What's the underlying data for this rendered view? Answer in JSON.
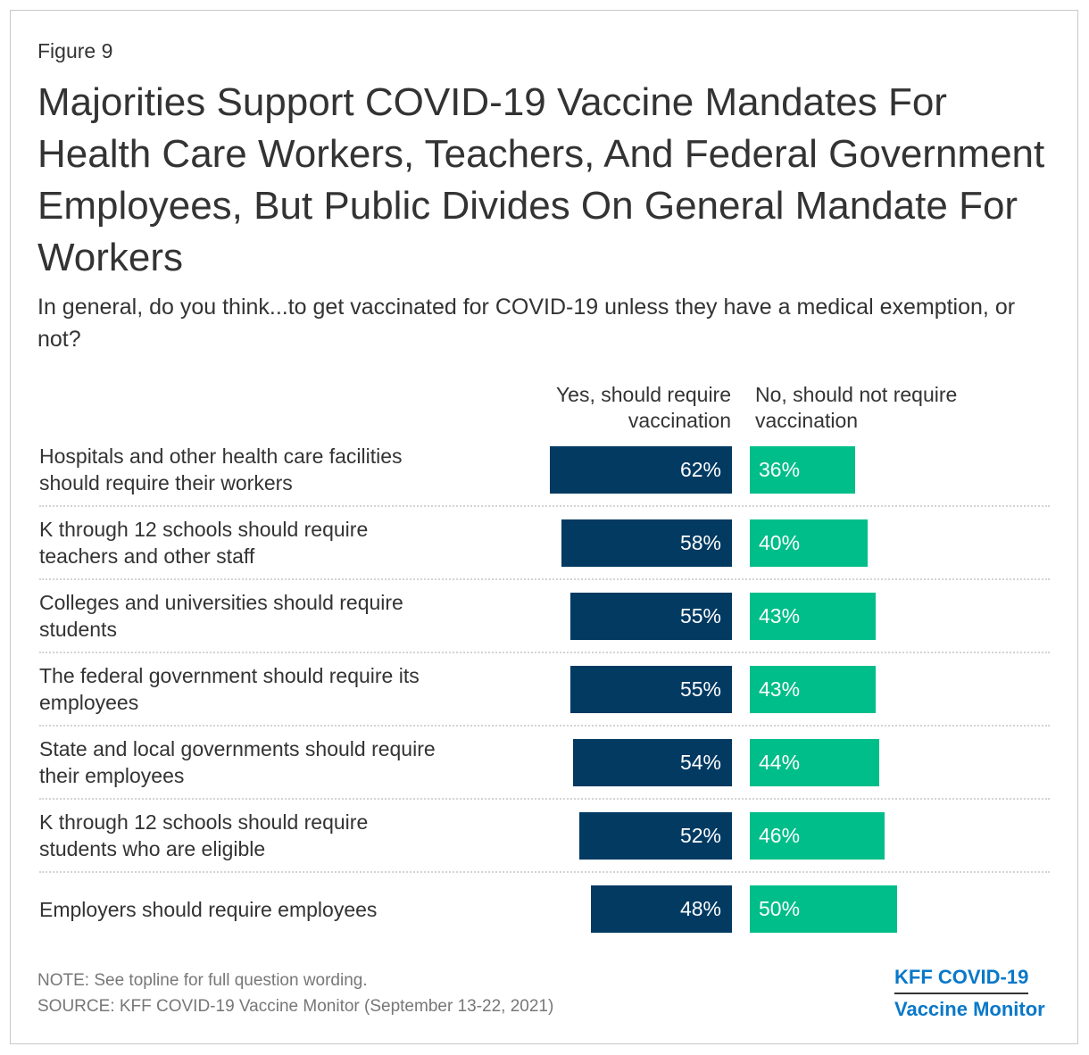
{
  "figure_label": "Figure 9",
  "title": "Majorities Support COVID-19 Vaccine Mandates For Health Care Workers, Teachers, And Federal Government Employees, But Public Divides On General Mandate For Workers",
  "subtitle": "In general, do you think...to get vaccinated for COVID-19 unless they have a medical exemption, or not?",
  "note": "NOTE: See topline for full question wording.",
  "source": "SOURCE: KFF COVID-19 Vaccine Monitor (September 13-22, 2021)",
  "logo": {
    "line1": "KFF COVID-19",
    "line2": "Vaccine Monitor"
  },
  "colors": {
    "yes": "#023a62",
    "no": "#00be89"
  },
  "chart_data": {
    "type": "bar",
    "orientation": "horizontal-diverging",
    "categories": [
      "Hospitals and other health care facilities should require their workers",
      "K through 12 schools should require teachers and other staff",
      "Colleges and universities should require students",
      "The federal government should require its employees",
      "State and local governments should require their employees",
      "K through 12 schools should require students who are eligible",
      "Employers should require employees"
    ],
    "series": [
      {
        "name": "Yes, should require vaccination",
        "values": [
          62,
          58,
          55,
          55,
          54,
          52,
          48
        ]
      },
      {
        "name": "No, should not require vaccination",
        "values": [
          36,
          40,
          43,
          43,
          44,
          46,
          50
        ]
      }
    ],
    "unit": "%"
  }
}
